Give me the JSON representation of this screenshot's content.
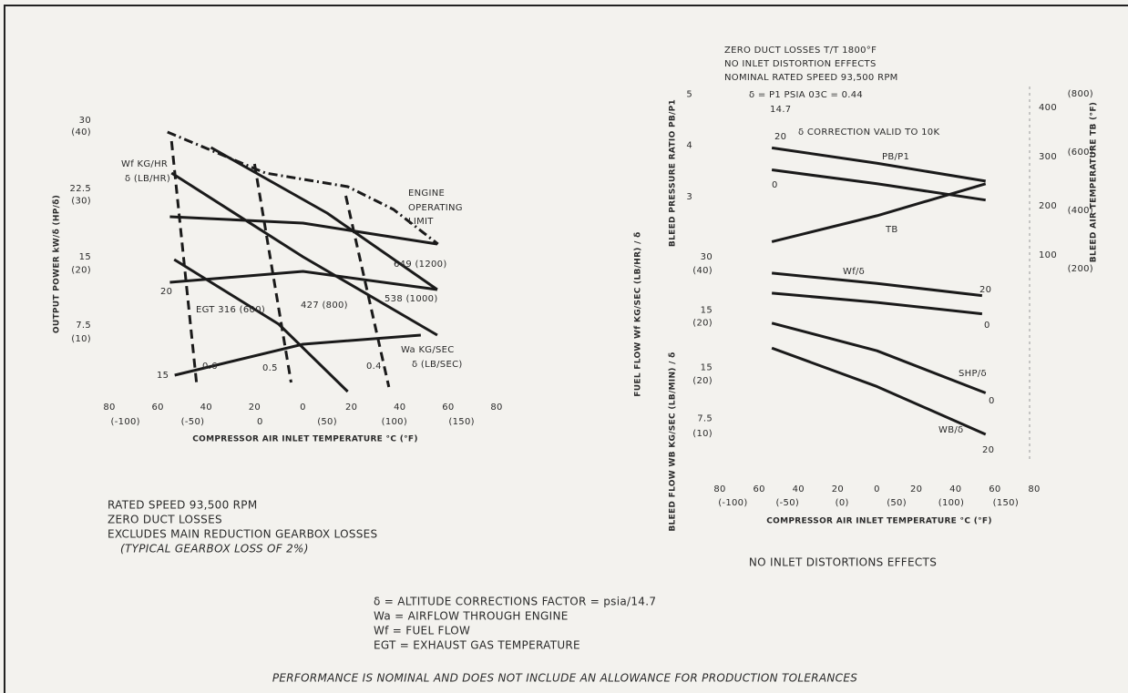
{
  "chart_data": [
    {
      "type": "line",
      "color": "#1a1a1a",
      "xlabel": "COMPRESSOR AIR INLET TEMPERATURE °C (°F)",
      "ylabel": "OUTPUT POWER kW/δ (HP/δ)",
      "xlim": [
        -80,
        80
      ],
      "xticks": [
        {
          "value": -80,
          "label": "80"
        },
        {
          "value": -60,
          "label": "60"
        },
        {
          "value": -40,
          "label": "40"
        },
        {
          "value": -20,
          "label": "20"
        },
        0,
        20,
        40,
        60,
        80
      ],
      "x2lim": [
        -112,
        176
      ],
      "x2ticks": [
        {
          "value": -100,
          "label": "(-100)"
        },
        {
          "value": -50,
          "label": "(-50)"
        },
        0,
        {
          "value": 50,
          "label": "(50)"
        },
        {
          "value": 100,
          "label": "(100)"
        },
        {
          "value": 150,
          "label": "(150)"
        }
      ],
      "ylim": [
        0,
        30
      ],
      "yticks": [
        7.5,
        15,
        22.5,
        30
      ],
      "y2lim": [
        2.1,
        41.7
      ],
      "y2ticks": [
        {
          "value": 10,
          "label": "(10)"
        },
        {
          "value": 20,
          "label": "(20)"
        },
        {
          "value": 30,
          "label": "(30)"
        },
        {
          "value": 40,
          "label": "(40)"
        }
      ],
      "series": [
        {
          "style": "dashdot",
          "x": [
            -56,
            -15.5,
            18.5,
            37.4,
            55.8
          ],
          "values": [
            28.7,
            24.2,
            22.7,
            20.2,
            16.4
          ]
        },
        {
          "style": "solid",
          "x": [
            -54.3,
            0,
            55.5
          ],
          "values": [
            24.2,
            15.0,
            6.4
          ]
        },
        {
          "style": "solid",
          "x": [
            -38,
            10,
            55.5
          ],
          "values": [
            27,
            19.8,
            11.4
          ]
        },
        {
          "style": "solid",
          "x": [
            -53.2,
            -10,
            18.5
          ],
          "values": [
            14.7,
            7.6,
            0.2
          ]
        },
        {
          "style": "solid",
          "x": [
            -55,
            0,
            55.5
          ],
          "values": [
            19.4,
            18.7,
            16.4
          ]
        },
        {
          "style": "solid",
          "x": [
            -55,
            0,
            55.5
          ],
          "values": [
            12.2,
            13.4,
            11.4
          ]
        },
        {
          "style": "solid",
          "x": [
            -53,
            0,
            48.7
          ],
          "values": [
            2,
            5.4,
            6.4
          ]
        },
        {
          "style": "dashed",
          "x": [
            -54.3,
            -43.8
          ],
          "values": [
            27.7,
            0.7
          ]
        },
        {
          "style": "dashed",
          "x": [
            -20,
            -4.9
          ],
          "values": [
            25.2,
            1.2
          ]
        },
        {
          "style": "dashed",
          "x": [
            17.7,
            35.5
          ],
          "values": [
            21.7,
            0.7
          ]
        }
      ],
      "annotations": [
        "Wf KG/HR",
        "δ (LB/HR)",
        "ENGINE",
        "OPERATING",
        "LIMIT",
        "649 (1200)",
        "538 (1000)",
        "427 (800)",
        "EGT 316 (600)",
        "Wa KG/SEC",
        "δ (LB/SEC)",
        "0.6",
        "0.5",
        "0.4",
        "20",
        "15"
      ]
    },
    {
      "type": "line",
      "color": "#1a1a1a",
      "ylabel": "BLEED PRESSURE RATIO PB/P1",
      "y2label": "BLEED AIR TEMPERATURE TB (°F)",
      "xlim": [
        -80,
        80
      ],
      "ylim": [
        1.5,
        5.15
      ],
      "yticks": [
        3,
        4,
        5
      ],
      "y2lim": [
        63,
        443
      ],
      "y2ticks": [
        100,
        200,
        300,
        400
      ],
      "y3lim": [
        184,
        825
      ],
      "y3ticks": [
        {
          "value": 200,
          "label": "(200)"
        },
        {
          "value": 400,
          "label": "(400)"
        },
        {
          "value": 600,
          "label": "(600)"
        },
        {
          "value": 800,
          "label": "(800)"
        }
      ],
      "series": [
        {
          "style": "solid",
          "x": [
            -53.5,
            0,
            55.3
          ],
          "values": [
            3.95,
            3.65,
            3.3
          ]
        },
        {
          "style": "solid",
          "x": [
            -53.5,
            0,
            55.3
          ],
          "values": [
            3.52,
            3.25,
            2.93
          ]
        },
        {
          "style": "solid",
          "axis": "y2",
          "x": [
            -53.5,
            0,
            55.3
          ],
          "values": [
            127,
            180,
            245
          ]
        }
      ],
      "annotations": [
        "PB/P1",
        "TB",
        "20",
        "0"
      ]
    },
    {
      "type": "line",
      "color": "#1a1a1a",
      "ylabel": "FUEL FLOW Wf KG/SEC (LB/HR) / δ",
      "xlim": [
        -80,
        80
      ],
      "ylim": [
        5,
        33
      ],
      "yticks": [
        15,
        30
      ],
      "y2lim": [
        11,
        49.5
      ],
      "y2ticks": [
        {
          "value": 20,
          "label": "(20)"
        },
        {
          "value": 40,
          "label": "(40)"
        }
      ],
      "series": [
        {
          "style": "solid",
          "x": [
            -53.5,
            0,
            53.5
          ],
          "values": [
            25.4,
            22.5,
            19.1
          ]
        },
        {
          "style": "solid",
          "x": [
            -53.5,
            0,
            53.5
          ],
          "values": [
            19.8,
            17.2,
            14
          ]
        }
      ],
      "annotations": [
        "Wf/δ",
        "20",
        "0"
      ]
    },
    {
      "type": "line",
      "color": "#1a1a1a",
      "ylabel": "BLEED FLOW WB KG/SEC (LB/MIN) / δ",
      "xlabel": "COMPRESSOR AIR INLET TEMPERATURE °C (°F)",
      "xlim": [
        -80,
        80
      ],
      "xticks": [
        {
          "value": -80,
          "label": "80"
        },
        {
          "value": -60,
          "label": "60"
        },
        {
          "value": -40,
          "label": "40"
        },
        {
          "value": -20,
          "label": "20"
        },
        0,
        20,
        40,
        60,
        80
      ],
      "x2lim": [
        -112,
        176
      ],
      "x2ticks": [
        {
          "value": -100,
          "label": "(-100)"
        },
        {
          "value": -50,
          "label": "(-50)"
        },
        {
          "value": 0,
          "label": "(0)"
        },
        {
          "value": 50,
          "label": "(50)"
        },
        {
          "value": 100,
          "label": "(100)"
        },
        {
          "value": 150,
          "label": "(150)"
        }
      ],
      "ylim": [
        2,
        23.6
      ],
      "yticks": [
        7.5,
        15
      ],
      "y2lim": [
        5.9,
        33.4
      ],
      "y2ticks": [
        {
          "value": 10,
          "label": "(10)"
        },
        {
          "value": 20,
          "label": "(20)"
        }
      ],
      "series": [
        {
          "style": "solid",
          "x": [
            -53.5,
            0,
            55.3
          ],
          "values": [
            21.6,
            17.5,
            11.25
          ]
        },
        {
          "style": "solid",
          "x": [
            -53.5,
            0,
            55.3
          ],
          "values": [
            17.9,
            12.2,
            5.1
          ]
        }
      ],
      "annotations": [
        "SHP/δ",
        "0",
        "WB/δ",
        "20"
      ]
    }
  ],
  "left_notes": [
    "RATED SPEED 93,500 RPM",
    "ZERO DUCT LOSSES",
    "EXCLUDES MAIN REDUCTION GEARBOX LOSSES",
    "(TYPICAL GEARBOX LOSS OF 2%)"
  ],
  "right_header": [
    "ZERO DUCT LOSSES T/T 1800°F",
    "NO INLET DISTORTION EFFECTS",
    "NOMINAL RATED SPEED 93,500 RPM",
    "δ = P1 PSIA  03C = 0.44",
    "14.7",
    "δ CORRECTION VALID TO 10K"
  ],
  "right_note": "NO INLET DISTORTIONS EFFECTS",
  "definitions": [
    "δ = ALTITUDE CORRECTIONS FACTOR = psia/14.7",
    "Wa = AIRFLOW THROUGH ENGINE",
    "Wf = FUEL FLOW",
    "EGT = EXHAUST GAS TEMPERATURE"
  ],
  "footer": "PERFORMANCE IS NOMINAL AND DOES NOT INCLUDE AN ALLOWANCE FOR PRODUCTION TOLERANCES"
}
